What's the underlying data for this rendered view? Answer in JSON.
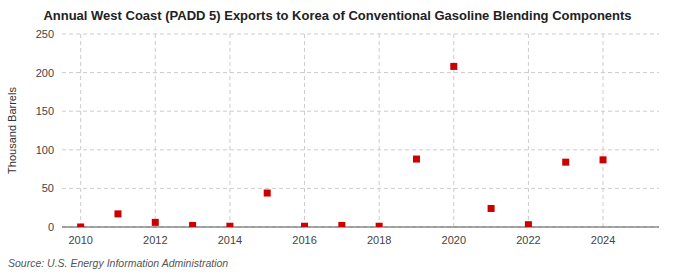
{
  "chart_data": {
    "type": "scatter",
    "title": "Annual West Coast (PADD 5) Exports to Korea of Conventional Gasoline Blending Components",
    "ylabel": "Thousand Barrels",
    "annotations": [
      "Source: U.S. Energy Information Administration"
    ],
    "x": [
      2010,
      2011,
      2012,
      2013,
      2014,
      2015,
      2016,
      2017,
      2018,
      2019,
      2020,
      2021,
      2022,
      2023,
      2024
    ],
    "values": [
      0,
      17,
      6,
      2,
      1,
      44,
      1,
      2,
      1,
      88,
      208,
      24,
      3,
      84,
      87
    ],
    "color": "#cc0000",
    "marker": "square",
    "xlim": [
      2009.5,
      2025.5
    ],
    "xticks": [
      2010,
      2012,
      2014,
      2016,
      2018,
      2020,
      2022,
      2024
    ],
    "ylim": [
      0,
      250
    ],
    "yticks": [
      0,
      50,
      100,
      150,
      200,
      250
    ],
    "grid": true
  }
}
